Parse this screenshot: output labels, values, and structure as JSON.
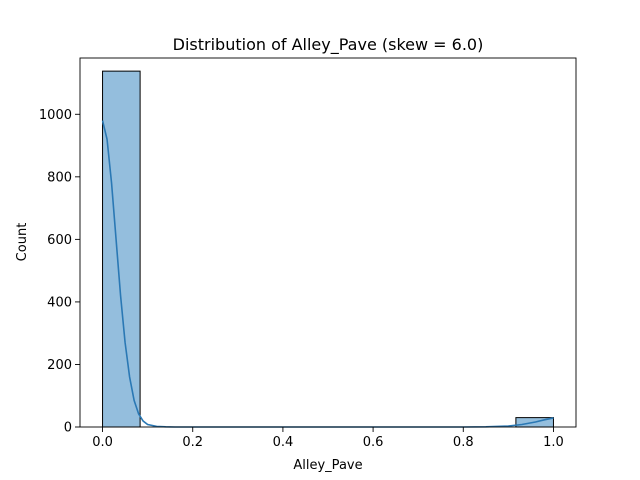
{
  "chart_data": {
    "type": "bar",
    "title": "Distribution of Alley_Pave (skew = 6.0)",
    "xlabel": "Alley_Pave",
    "ylabel": "Count",
    "xlim": [
      -0.05,
      1.05
    ],
    "ylim": [
      0,
      1180
    ],
    "xticks": [
      "0.0",
      "0.2",
      "0.4",
      "0.6",
      "0.8",
      "1.0"
    ],
    "xtick_values": [
      0.0,
      0.2,
      0.4,
      0.6,
      0.8,
      1.0
    ],
    "yticks": [
      "0",
      "200",
      "400",
      "600",
      "800",
      "1000"
    ],
    "ytick_values": [
      0,
      200,
      400,
      600,
      800,
      1000
    ],
    "bins": [
      {
        "x0": 0.0,
        "x1": 0.0833,
        "count": 1138
      },
      {
        "x0": 0.9167,
        "x1": 1.0,
        "count": 30
      }
    ],
    "kde": {
      "x": [
        0.0,
        0.01,
        0.02,
        0.03,
        0.04,
        0.05,
        0.06,
        0.07,
        0.08,
        0.09,
        0.1,
        0.12,
        0.14,
        0.16,
        0.2,
        0.3,
        0.5,
        0.7,
        0.8,
        0.85,
        0.9,
        0.93,
        0.96,
        0.98,
        1.0
      ],
      "y": [
        980,
        920,
        780,
        600,
        420,
        270,
        160,
        85,
        42,
        19,
        8,
        2,
        0.5,
        0,
        0,
        0,
        0,
        0,
        0,
        0.5,
        3,
        8,
        16,
        23,
        29
      ]
    },
    "grid": false,
    "legend": "none",
    "colors": {
      "bar_fill": "#94bedd",
      "bar_edge": "#000000",
      "kde_line": "#2a78b4"
    }
  }
}
